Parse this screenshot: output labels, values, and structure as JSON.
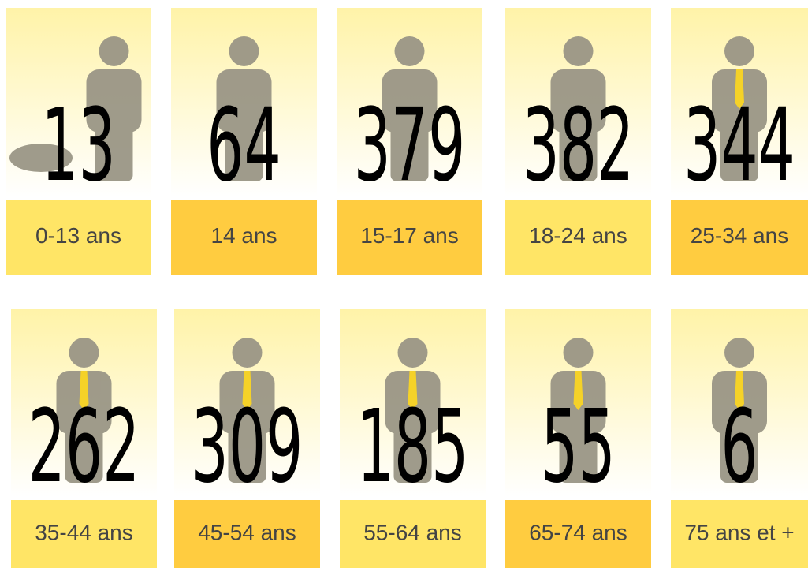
{
  "cards": [
    {
      "value": "13",
      "label": "0-13 ans",
      "color": "#ffe566"
    },
    {
      "value": "64",
      "label": "14 ans",
      "color": "#ffcc40"
    },
    {
      "value": "379",
      "label": "15-17 ans",
      "color": "#ffcc40"
    },
    {
      "value": "382",
      "label": "18-24 ans",
      "color": "#ffe566"
    },
    {
      "value": "344",
      "label": "25-34 ans",
      "color": "#ffcc40"
    },
    {
      "value": "262",
      "label": "35-44 ans",
      "color": "#ffe566"
    },
    {
      "value": "309",
      "label": "45-54 ans",
      "color": "#ffcc40"
    },
    {
      "value": "185",
      "label": "55-64 ans",
      "color": "#ffe566"
    },
    {
      "value": "55",
      "label": "65-74 ans",
      "color": "#ffcc40"
    },
    {
      "value": "6",
      "label": "75 ans et +",
      "color": "#ffe566"
    }
  ]
}
